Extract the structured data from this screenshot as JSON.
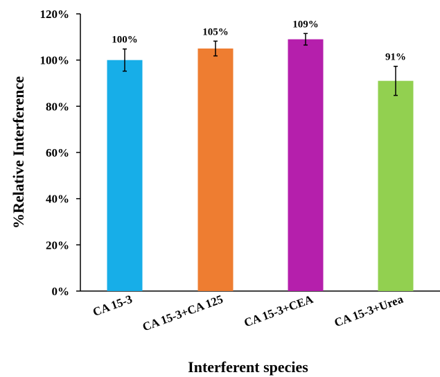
{
  "chart_data": {
    "type": "bar",
    "categories": [
      "CA 15-3",
      "CA 15-3+CA 125",
      "CA 15-3+CEA",
      "CA 15-3+Urea"
    ],
    "values": [
      100,
      105,
      109,
      91
    ],
    "errors": [
      4.8,
      3.2,
      2.5,
      6.3
    ],
    "value_labels": [
      "100%",
      "105%",
      "109%",
      "91%"
    ],
    "colors": [
      "#17aee8",
      "#ee7d31",
      "#b51fac",
      "#92d050"
    ],
    "title": "",
    "xlabel": "Interferent species",
    "ylabel": "%Relative Interference",
    "ylim": [
      0,
      120
    ],
    "yticks": [
      0,
      20,
      40,
      60,
      80,
      100,
      120
    ],
    "ytick_labels": [
      "0%",
      "20%",
      "40%",
      "60%",
      "80%",
      "100%",
      "120%"
    ],
    "grid": false,
    "legend": "none"
  }
}
